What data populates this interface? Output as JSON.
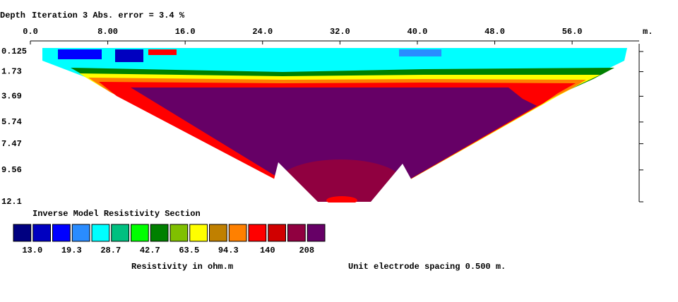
{
  "chart_data": {
    "type": "contour",
    "y_label": "Depth",
    "title": "Iteration 3 Abs. error = 3.4 %",
    "x_unit": "m.",
    "xlim": [
      0,
      63
    ],
    "xticks": [
      {
        "value": 0,
        "label": "0.0"
      },
      {
        "value": 8,
        "label": "8.00"
      },
      {
        "value": 16,
        "label": "16.0"
      },
      {
        "value": 24,
        "label": "24.0"
      },
      {
        "value": 32,
        "label": "32.0"
      },
      {
        "value": 40,
        "label": "40.0"
      },
      {
        "value": 48,
        "label": "48.0"
      },
      {
        "value": 56,
        "label": "56.0"
      }
    ],
    "ylim": [
      0.125,
      12.1
    ],
    "yticks": [
      0.125,
      1.73,
      3.69,
      5.74,
      7.47,
      9.56,
      12.1
    ],
    "legend": {
      "title": "Inverse Model Resistivity Section",
      "colors": [
        "#000080",
        "#0000c0",
        "#0000ff",
        "#2a8cff",
        "#00ffff",
        "#00c080",
        "#00ff00",
        "#008000",
        "#80c000",
        "#ffff00",
        "#c08000",
        "#ff8000",
        "#ff0000",
        "#d00000",
        "#900040",
        "#660066"
      ],
      "labels": [
        {
          "value": 13.0,
          "label": "13.0"
        },
        19.3,
        28.7,
        42.7,
        63.5,
        94.3,
        140,
        208
      ],
      "caption": "Resistivity in ohm.m"
    },
    "note": "Unit electrode spacing 0.500 m."
  }
}
